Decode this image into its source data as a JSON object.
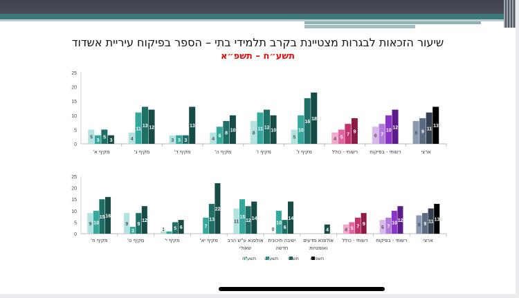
{
  "header": {
    "title": "שיעור הזכאות לבגרות מצטיינת בקרב תלמידי בתי – הספר בפיקוח עיריית אשדוד",
    "subtitle": "תשע״ח – תשפ״א"
  },
  "palettes": {
    "teal": [
      "#b3e3e1",
      "#35a89d",
      "#1f6f67",
      "#164b46"
    ],
    "pink": [
      "#f2a9c9",
      "#e2649e",
      "#c2336c",
      "#8b1a47"
    ],
    "purple": [
      "#d8b8ea",
      "#b27cd9",
      "#8b36c9",
      "#5b1b8b"
    ],
    "gray": [
      "#8a9bb1",
      "#5b6b82",
      "#353f4f",
      "#000000"
    ]
  },
  "chart_data": [
    {
      "type": "bar",
      "title": "",
      "ylim": [
        0,
        25
      ],
      "yticks": [
        0,
        5,
        10,
        15,
        20,
        25
      ],
      "series_names": [
        "תשע\"ח",
        "תשע\"ט",
        "תש\"פ",
        "תשפ\"א"
      ],
      "categories": [
        {
          "label": [
            "מקיף א'"
          ],
          "palette": "teal",
          "values": [
            5,
            3,
            5,
            3
          ]
        },
        {
          "label": [
            "מקיף ג'"
          ],
          "palette": "teal",
          "values": [
            4,
            11,
            13,
            12
          ]
        },
        {
          "label": [
            "מקיף ד'"
          ],
          "palette": "teal",
          "values": [
            3,
            3,
            3,
            13
          ]
        },
        {
          "label": [
            "מקיף ה'"
          ],
          "palette": "teal",
          "values": [
            4,
            6,
            8,
            10
          ]
        },
        {
          "label": [
            "מקיף ו'"
          ],
          "palette": "teal",
          "values": [
            8,
            11,
            12,
            10
          ]
        },
        {
          "label": [
            "מקיף ז'"
          ],
          "palette": "teal",
          "values": [
            5,
            10,
            16,
            18
          ]
        },
        {
          "label": [
            "רשותי - כולל"
          ],
          "palette": "pink",
          "values": [
            4,
            5,
            7,
            9
          ]
        },
        {
          "label": [
            "רשותי - בפיקוח"
          ],
          "palette": "purple",
          "values": [
            6,
            7,
            10,
            12
          ]
        },
        {
          "label": [
            "ארצי"
          ],
          "palette": "gray",
          "values": [
            8,
            9,
            11,
            13
          ]
        }
      ]
    },
    {
      "type": "bar",
      "title": "",
      "ylim": [
        0,
        25
      ],
      "yticks": [
        0,
        5,
        10,
        15,
        20,
        25
      ],
      "legend": {
        "position": "bottom",
        "entries": [
          "תשע\"ח",
          "תשע\"ט",
          "תש\"פ",
          "תשפ\"א"
        ]
      },
      "series_names": [
        "תשע\"ח",
        "תשע\"ט",
        "תש\"פ",
        "תשפ\"א"
      ],
      "categories": [
        {
          "label": [
            "מקיף ח'"
          ],
          "palette": "teal",
          "values": [
            9,
            10,
            15,
            16
          ]
        },
        {
          "label": [
            "מקיף ט'"
          ],
          "palette": "teal",
          "values": [
            9,
            3,
            9,
            12
          ]
        },
        {
          "label": [
            "מקיף י'"
          ],
          "palette": "teal",
          "values": [
            1,
            1,
            5,
            6
          ]
        },
        {
          "label": [
            "מקיף יא'"
          ],
          "palette": "teal",
          "values": [
            null,
            7,
            13,
            22
          ]
        },
        {
          "label": [
            "אולפנא ע\"ש הרב",
            "שאולי"
          ],
          "palette": "teal",
          "values": [
            11,
            15,
            12,
            14
          ]
        },
        {
          "label": [
            "ישיבה תיכונית",
            "חדשה"
          ],
          "palette": "teal",
          "values": [
            0,
            10,
            6,
            14
          ]
        },
        {
          "label": [
            "אולפנא מדעים",
            "ואומנויות"
          ],
          "palette": "teal",
          "values": [
            null,
            null,
            null,
            4
          ]
        },
        {
          "label": [
            "רשותי - כולל"
          ],
          "palette": "pink",
          "values": [
            4,
            5,
            7,
            9
          ]
        },
        {
          "label": [
            "רשותי - בפיקוח"
          ],
          "palette": "purple",
          "values": [
            6,
            7,
            10,
            12
          ]
        },
        {
          "label": [
            "ארצי"
          ],
          "palette": "gray",
          "values": [
            8,
            9,
            11,
            13
          ]
        }
      ]
    }
  ]
}
